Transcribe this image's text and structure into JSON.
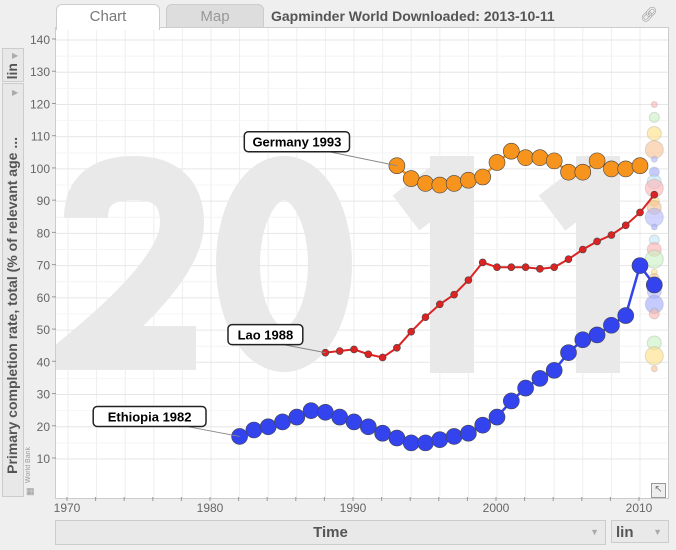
{
  "tabs": [
    {
      "label": "Chart"
    },
    {
      "label": "Map"
    }
  ],
  "title": "Gapminder World Downloaded: 2013-10-11",
  "y_scale": "lin",
  "x_scale": "lin",
  "source": "World Bank",
  "icons": {
    "link": "link-icon",
    "resize": "resize-arrow-icon",
    "grid": "table-icon"
  },
  "chart_data": {
    "type": "scatter",
    "background_year": "2011",
    "ylabel": "Primary completion rate, total (% of relevant age ...",
    "xlabel": "Time",
    "xlim": [
      1969,
      2011.5
    ],
    "ylim": [
      -2,
      144
    ],
    "xticks": [
      "1970",
      "1980",
      "1990",
      "2000",
      "2010"
    ],
    "yticks": [
      "10",
      "20",
      "30",
      "40",
      "50",
      "60",
      "70",
      "80",
      "90",
      "100",
      "110",
      "120",
      "130",
      "140"
    ],
    "grid": true,
    "series": [
      {
        "name": "Germany 1993",
        "color": "#f7941d",
        "size": "large",
        "x": [
          1993,
          1994,
          1995,
          1996,
          1997,
          1998,
          1999,
          2000,
          2001,
          2002,
          2003,
          2004,
          2005,
          2006,
          2007,
          2008,
          2009,
          2010
        ],
        "y": [
          101,
          97,
          95.5,
          95,
          95.5,
          96.5,
          97.5,
          102,
          105.5,
          103.5,
          103.5,
          102.5,
          99,
          99,
          102.5,
          100,
          100,
          101
        ]
      },
      {
        "name": "Lao 1988",
        "color": "#dd2222",
        "size": "small",
        "x": [
          1988,
          1989,
          1990,
          1991,
          1992,
          1993,
          1994,
          1995,
          1996,
          1997,
          1998,
          1999,
          2000,
          2001,
          2002,
          2003,
          2004,
          2005,
          2006,
          2007,
          2008,
          2009,
          2010,
          2011
        ],
        "y": [
          43,
          43.5,
          44,
          42.5,
          41.5,
          44.5,
          49.5,
          54,
          58,
          61,
          65.5,
          71,
          69.5,
          69.5,
          69.5,
          69,
          69.5,
          72,
          75,
          77.5,
          79.5,
          82.5,
          86.5,
          92
        ]
      },
      {
        "name": "Ethiopia 1982",
        "color": "#3344ee",
        "size": "large",
        "x": [
          1982,
          1983,
          1984,
          1985,
          1986,
          1987,
          1988,
          1989,
          1990,
          1991,
          1992,
          1993,
          1994,
          1995,
          1996,
          1997,
          1998,
          1999,
          2000,
          2001,
          2002,
          2003,
          2004,
          2005,
          2006,
          2007,
          2008,
          2009,
          2010,
          2011
        ],
        "y": [
          17,
          19,
          20,
          21.5,
          23,
          25,
          24.5,
          23,
          21.5,
          20,
          18,
          16.5,
          15,
          15,
          16,
          17,
          18,
          20.5,
          23,
          28,
          32,
          35,
          37.5,
          43,
          47,
          48.5,
          51.5,
          54.5,
          70,
          64
        ]
      }
    ],
    "other_countries_2011": [
      120,
      116,
      111,
      106,
      103,
      99,
      96,
      94,
      92,
      90,
      88,
      85,
      82,
      78,
      75,
      72,
      68,
      66,
      62,
      58,
      56,
      55,
      46,
      42,
      38
    ]
  }
}
